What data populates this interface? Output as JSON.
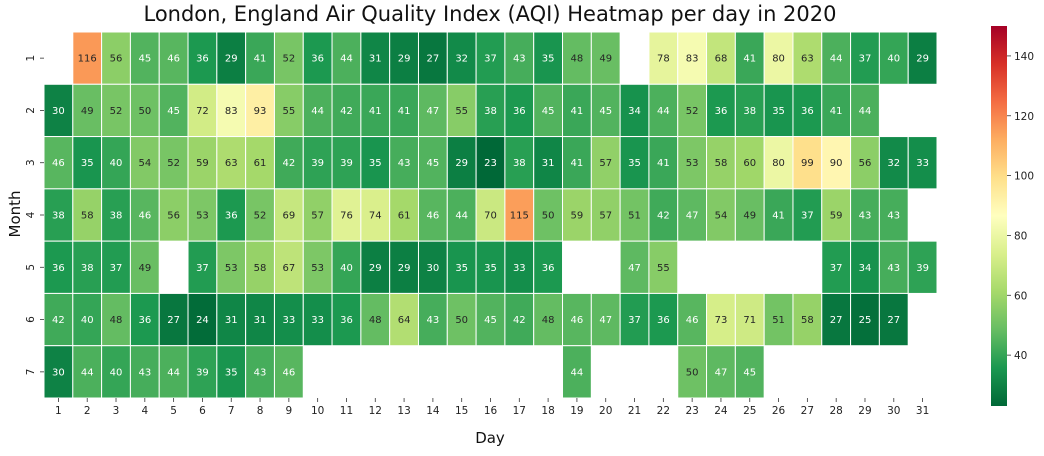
{
  "chart_data": {
    "type": "heatmap",
    "title": "London, England Air Quality Index (AQI) Heatmap per day in 2020",
    "xlabel": "Day",
    "ylabel": "Month",
    "x_categories": [
      "1",
      "2",
      "3",
      "4",
      "5",
      "6",
      "7",
      "8",
      "9",
      "10",
      "11",
      "12",
      "13",
      "14",
      "15",
      "16",
      "17",
      "18",
      "19",
      "20",
      "21",
      "22",
      "23",
      "24",
      "25",
      "26",
      "27",
      "28",
      "29",
      "30",
      "31"
    ],
    "y_categories": [
      "1",
      "2",
      "3",
      "4",
      "5",
      "6",
      "7"
    ],
    "values": [
      [
        null,
        116,
        56,
        45,
        46,
        36,
        29,
        41,
        52,
        36,
        44,
        31,
        29,
        27,
        32,
        37,
        43,
        35,
        48,
        49,
        null,
        78,
        83,
        68,
        41,
        80,
        63,
        44,
        37,
        40,
        29
      ],
      [
        30,
        49,
        52,
        50,
        45,
        72,
        83,
        93,
        55,
        44,
        42,
        41,
        41,
        47,
        55,
        38,
        36,
        45,
        41,
        45,
        34,
        44,
        52,
        36,
        38,
        35,
        36,
        41,
        44,
        null,
        null
      ],
      [
        46,
        35,
        40,
        54,
        52,
        59,
        63,
        61,
        42,
        39,
        39,
        35,
        43,
        45,
        29,
        23,
        38,
        31,
        41,
        57,
        35,
        41,
        53,
        58,
        60,
        80,
        99,
        90,
        56,
        32,
        33
      ],
      [
        38,
        58,
        38,
        46,
        56,
        53,
        36,
        52,
        69,
        57,
        76,
        74,
        61,
        46,
        44,
        70,
        115,
        50,
        59,
        57,
        51,
        42,
        47,
        54,
        49,
        41,
        37,
        59,
        43,
        43,
        null
      ],
      [
        36,
        38,
        37,
        49,
        null,
        37,
        53,
        58,
        67,
        53,
        40,
        29,
        29,
        30,
        35,
        35,
        33,
        36,
        null,
        null,
        47,
        55,
        null,
        null,
        null,
        null,
        null,
        37,
        34,
        43,
        39
      ],
      [
        42,
        40,
        48,
        36,
        27,
        24,
        31,
        31,
        33,
        33,
        36,
        48,
        64,
        43,
        50,
        45,
        42,
        48,
        46,
        47,
        37,
        36,
        46,
        73,
        71,
        51,
        58,
        27,
        25,
        27,
        null
      ],
      [
        30,
        44,
        40,
        43,
        44,
        39,
        35,
        43,
        46,
        null,
        null,
        null,
        null,
        null,
        null,
        null,
        null,
        null,
        44,
        null,
        null,
        null,
        50,
        47,
        45,
        null,
        null,
        null,
        null,
        null,
        null
      ]
    ],
    "colorbar": {
      "colormap": "RdYlGn_r",
      "vmin": 23,
      "vmax": 150,
      "ticks": [
        40,
        60,
        80,
        100,
        120,
        140
      ]
    },
    "grid": false,
    "legend": "colorbar-right"
  }
}
